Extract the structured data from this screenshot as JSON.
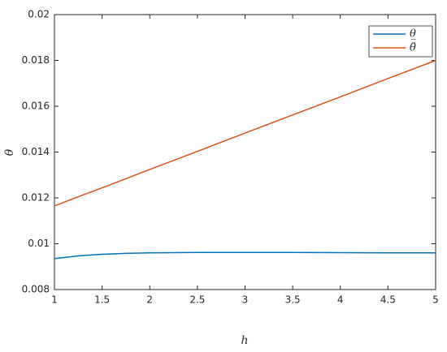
{
  "chart_data": {
    "type": "line",
    "x_label": "h",
    "y_label": "θ",
    "x": [
      1,
      1.25,
      1.5,
      1.75,
      2,
      2.5,
      3,
      3.5,
      4,
      4.5,
      5
    ],
    "series": [
      {
        "name": "θ̲",
        "color": "#0072bd",
        "values": [
          0.00935,
          0.00947,
          0.00954,
          0.00958,
          0.0096,
          0.00962,
          0.00962,
          0.00962,
          0.00961,
          0.0096,
          0.0096
        ]
      },
      {
        "name": "θ̄",
        "color": "#d95319",
        "values": [
          0.01165,
          0.01205,
          0.01244,
          0.01284,
          0.01324,
          0.01403,
          0.01483,
          0.01562,
          0.01641,
          0.01721,
          0.018
        ]
      }
    ],
    "xlim": [
      1,
      5
    ],
    "ylim": [
      0.008,
      0.02
    ],
    "xticks": [
      1,
      1.5,
      2,
      2.5,
      3,
      3.5,
      4,
      4.5,
      5
    ],
    "yticks": [
      0.008,
      0.01,
      0.012,
      0.014,
      0.016,
      0.018,
      0.02
    ],
    "legend": "upper-right"
  }
}
